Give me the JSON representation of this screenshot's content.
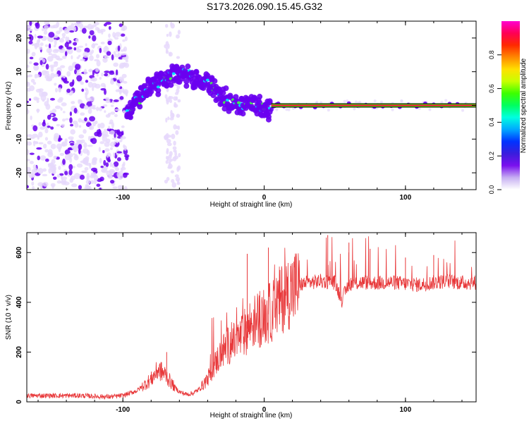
{
  "title": "S173.2026.090.15.45.G32",
  "colors": {
    "spectrogram_light": "#e6d8fb",
    "spectrogram_purple": "#6a00f0",
    "snr_line": "#e8383a",
    "ridge_core": "#ff0044"
  },
  "chart_data": [
    {
      "type": "heatmap",
      "name": "spectrogram",
      "xlabel": "Height of straight line (km)",
      "ylabel": "Frequency (Hz)",
      "xlim": [
        -168,
        150
      ],
      "ylim": [
        -25,
        25
      ],
      "x_ticks": [
        -100,
        0,
        100
      ],
      "x_tick_labels": [
        "-100",
        "0",
        "100"
      ],
      "y_ticks": [
        20,
        10,
        0,
        -10,
        -20
      ],
      "y_tick_labels": [
        "20",
        "10",
        "0",
        "-10",
        "-20"
      ],
      "ridge": {
        "description": "dominant Doppler frequency track",
        "x": [
          -97,
          -93,
          -88,
          -84,
          -79,
          -74,
          -69,
          -64,
          -59,
          -54,
          -49,
          -44,
          -39,
          -34,
          -29,
          -24,
          -19,
          -14,
          -9,
          -4,
          0,
          4,
          10,
          30,
          60,
          90,
          120,
          148
        ],
        "y": [
          -2,
          0,
          2,
          4,
          6,
          7,
          8,
          9,
          10,
          9,
          8,
          7,
          6,
          5,
          2,
          1,
          0.5,
          0.5,
          1,
          0.5,
          -1,
          -1,
          0,
          0,
          0,
          0,
          0,
          0
        ]
      },
      "colorbar": {
        "label": "Normalized spectral amplitude",
        "range": [
          0,
          1
        ],
        "ticks": [
          0.0,
          0.2,
          0.4,
          0.6,
          0.8
        ],
        "tick_labels": [
          "0.0",
          "0.2",
          "0.4",
          "0.6",
          "0.8"
        ],
        "colormap": [
          "#ffffff",
          "#c7b0f2",
          "#7a10ee",
          "#3a1ddc",
          "#0033ff",
          "#00a8ff",
          "#00ffe0",
          "#00ff60",
          "#3cff00",
          "#c8ff00",
          "#ffe000",
          "#ff8800",
          "#ff2a00",
          "#ff0055",
          "#ff00d0"
        ]
      }
    },
    {
      "type": "line",
      "name": "snr",
      "xlabel": "Height of straight line (km)",
      "ylabel": "SNR (10 * v/v)",
      "xlim": [
        -168,
        150
      ],
      "ylim": [
        0,
        680
      ],
      "x_ticks": [
        -100,
        0,
        100
      ],
      "x_tick_labels": [
        "-100",
        "0",
        "100"
      ],
      "y_ticks": [
        0,
        200,
        400,
        600
      ],
      "y_tick_labels": [
        "0",
        "200",
        "400",
        "600"
      ],
      "x": [
        -168,
        -150,
        -130,
        -110,
        -100,
        -90,
        -80,
        -75,
        -70,
        -65,
        -60,
        -55,
        -50,
        -45,
        -40,
        -35,
        -30,
        -25,
        -20,
        -15,
        -10,
        -5,
        0,
        5,
        10,
        15,
        20,
        25,
        30,
        40,
        50,
        55,
        60,
        70,
        80,
        90,
        100,
        110,
        120,
        130,
        140,
        150
      ],
      "y": [
        25,
        25,
        25,
        20,
        25,
        45,
        90,
        130,
        110,
        70,
        40,
        30,
        35,
        55,
        95,
        150,
        200,
        230,
        240,
        270,
        310,
        330,
        340,
        360,
        400,
        430,
        455,
        470,
        478,
        485,
        480,
        410,
        475,
        480,
        478,
        480,
        475,
        470,
        480,
        485,
        478,
        480
      ],
      "spike_peaks": [
        {
          "x": -69,
          "y": 200
        },
        {
          "x": -12,
          "y": 595
        },
        {
          "x": 3,
          "y": 620
        },
        {
          "x": 45,
          "y": 670
        },
        {
          "x": 60,
          "y": 640
        },
        {
          "x": 75,
          "y": 615
        },
        {
          "x": 100,
          "y": 580
        },
        {
          "x": 120,
          "y": 590
        }
      ]
    }
  ]
}
